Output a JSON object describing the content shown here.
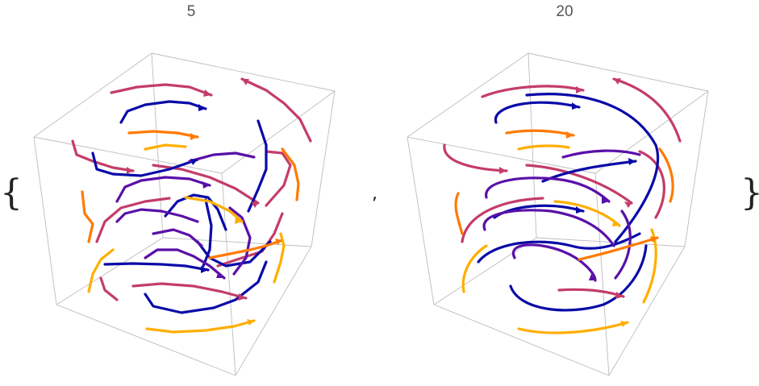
{
  "list_open": "{",
  "list_close": "}",
  "separator": ",",
  "panels": [
    {
      "title": "5",
      "style": "jagged",
      "colors": [
        "#0a0aa8",
        "#5a10a8",
        "#c43c6a",
        "#ff7a00",
        "#ffae00"
      ]
    },
    {
      "title": "20",
      "style": "smooth",
      "colors": [
        "#0a0aa8",
        "#5a10a8",
        "#c43c6a",
        "#ff7a00",
        "#ffae00"
      ]
    }
  ]
}
